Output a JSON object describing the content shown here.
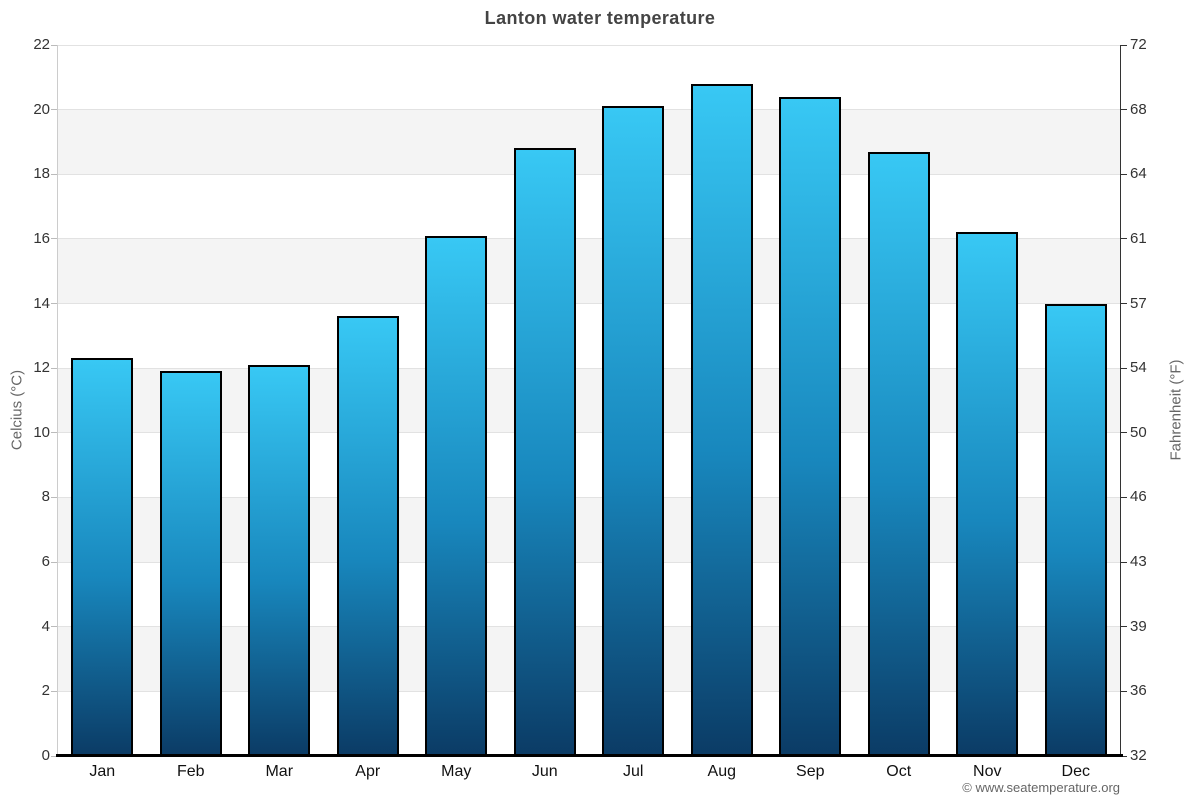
{
  "title": "Lanton water temperature",
  "footer_credit": "© www.seatemperature.org",
  "chart_data": {
    "type": "bar",
    "title": "Lanton water temperature",
    "categories": [
      "Jan",
      "Feb",
      "Mar",
      "Apr",
      "May",
      "Jun",
      "Jul",
      "Aug",
      "Sep",
      "Oct",
      "Nov",
      "Dec"
    ],
    "values": [
      12.3,
      11.9,
      12.1,
      13.6,
      16.1,
      18.8,
      20.1,
      20.8,
      20.4,
      18.7,
      16.2,
      14.0
    ],
    "xlabel": "",
    "ylabel_left": "Celcius (°C)",
    "ylabel_right": "Fahrenheit (°F)",
    "ylim": [
      0,
      22
    ],
    "yticks_left": [
      0,
      2,
      4,
      6,
      8,
      10,
      12,
      14,
      16,
      18,
      20,
      22
    ],
    "yticks_right_labels": [
      "32",
      "36",
      "39",
      "43",
      "46",
      "50",
      "54",
      "57",
      "61",
      "64",
      "68",
      "72"
    ],
    "grid": "horizontal gridlines with alternating gray bands",
    "legend": "none",
    "colors": {
      "bar_gradient_top": "#38c8f4",
      "bar_gradient_bottom": "#0b3b65",
      "bar_border": "#000000",
      "plot_band_gray": "#f4f4f4",
      "gridline": "#e2e2e2",
      "bottom_axis": "#000000",
      "title_text": "#444444",
      "tick_text": "#333333",
      "axis_title_text": "#666666",
      "credit_text": "#666666"
    }
  }
}
